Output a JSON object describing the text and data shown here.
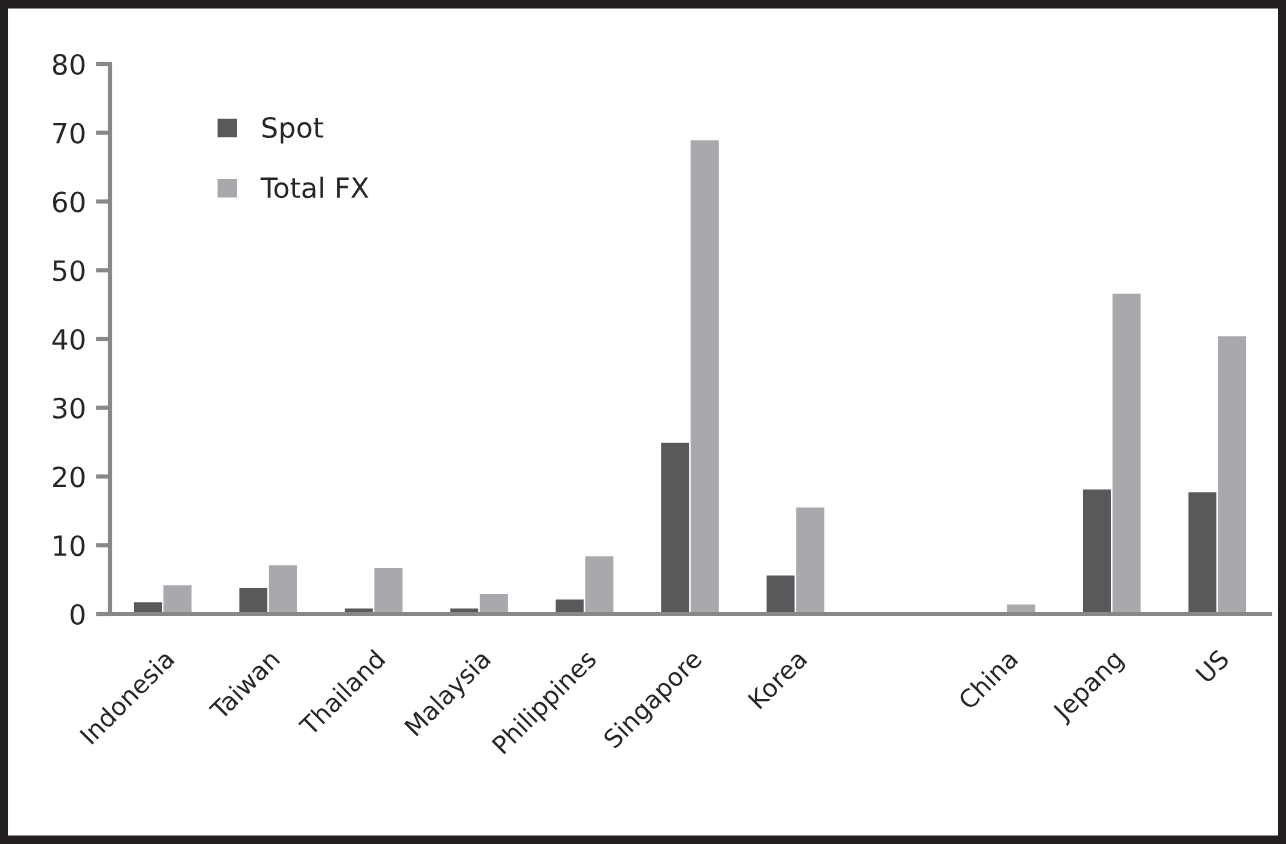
{
  "chart_data": {
    "type": "bar",
    "categories": [
      "Indonesia",
      "Taiwan",
      "Thailand",
      "Malaysia",
      "Philippines",
      "Singapore",
      "Korea",
      null,
      "China",
      "Jepang",
      "US"
    ],
    "series": [
      {
        "name": "Spot",
        "color": "#58595b",
        "values": [
          1.8,
          3.9,
          0.9,
          0.9,
          2.2,
          25,
          5.7,
          null,
          0.3,
          18.2,
          17.8
        ]
      },
      {
        "name": "Total FX",
        "color": "#a7a9ac",
        "values": [
          4.3,
          7.2,
          6.8,
          3.0,
          8.5,
          69,
          15.6,
          null,
          1.5,
          46.7,
          40.5
        ]
      }
    ],
    "ylim": [
      0,
      80
    ],
    "yticks": [
      0,
      10,
      20,
      30,
      40,
      50,
      60,
      70,
      80
    ],
    "grid": false,
    "legend": "top left"
  }
}
